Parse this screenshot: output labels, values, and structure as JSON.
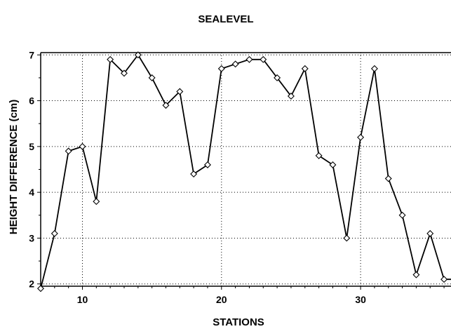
{
  "chart_data": {
    "type": "line",
    "title": "SEALEVEL",
    "xlabel": "STATIONS",
    "ylabel": "HEIGHT DIFFERENCE (cm)",
    "x_ticks": [
      10,
      20,
      30
    ],
    "y_ticks": [
      2,
      3,
      4,
      5,
      6,
      7
    ],
    "xlim": [
      7,
      36.5
    ],
    "ylim": [
      1.95,
      7.05
    ],
    "grid": true,
    "series": [
      {
        "x": [
          7,
          8,
          9,
          10,
          11,
          12,
          13,
          14,
          15,
          16,
          17,
          18,
          19,
          20,
          21,
          22,
          23,
          24,
          25,
          26,
          27,
          28,
          29,
          30,
          31,
          32,
          33,
          34,
          35,
          36,
          36.7
        ],
        "values": [
          1.9,
          3.1,
          4.9,
          5.0,
          3.8,
          6.9,
          6.6,
          7.0,
          6.5,
          5.9,
          6.2,
          4.4,
          4.6,
          6.7,
          6.8,
          6.9,
          6.9,
          6.5,
          6.1,
          6.7,
          4.8,
          4.6,
          3.0,
          5.2,
          6.7,
          4.3,
          3.5,
          2.2,
          3.1,
          2.1,
          2.1
        ],
        "color": "#000000",
        "marker": "diamond"
      }
    ]
  }
}
